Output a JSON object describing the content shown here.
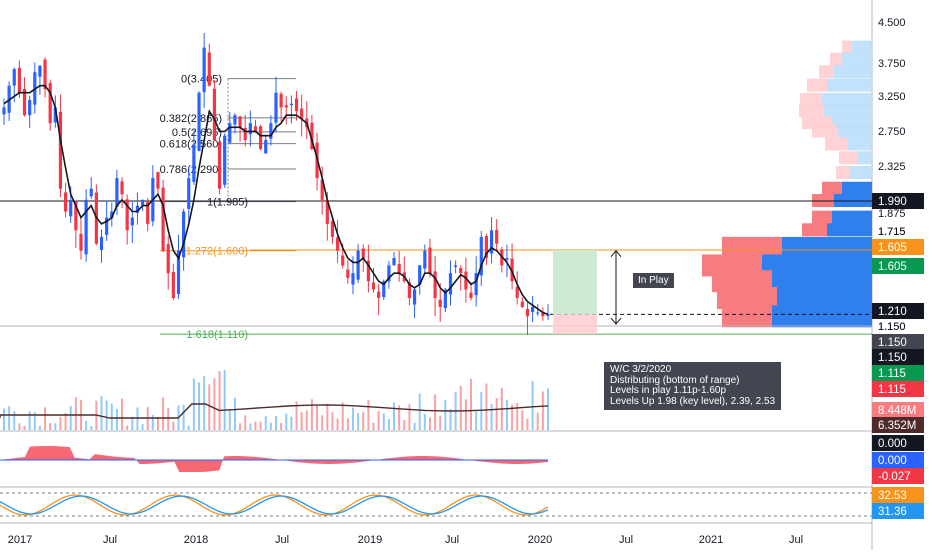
{
  "chart_data": [
    {
      "type": "candlestick",
      "panel": "price",
      "x_ticks": [
        "2017",
        "Jul",
        "2018",
        "Jul",
        "2019",
        "Jul",
        "2020",
        "Jul",
        "2021",
        "Jul"
      ],
      "y_ticks": [
        "4.500",
        "3.750",
        "3.250",
        "2.750",
        "2.325",
        "1.990",
        "1.875",
        "1.715",
        "1.605",
        "1.210",
        "1.150"
      ],
      "y_scale": "log",
      "ylim": [
        1.02,
        4.7
      ],
      "weekly_close": [
        3.0,
        3.3,
        3.55,
        3.2,
        2.9,
        3.1,
        3.5,
        3.6,
        3.25,
        2.8,
        3.0,
        2.1,
        1.9,
        2.0,
        1.75,
        1.6,
        2.0,
        2.1,
        1.65,
        1.7,
        1.85,
        1.9,
        2.2,
        2.05,
        1.75,
        1.85,
        1.95,
        2.0,
        1.8,
        2.2,
        2.1,
        1.6,
        1.45,
        1.3,
        1.6,
        1.9,
        2.2,
        2.55,
        3.2,
        3.9,
        3.3,
        2.6,
        2.1,
        2.65,
        2.8,
        2.9,
        2.75,
        2.6,
        2.8,
        2.7,
        2.5,
        2.6,
        2.8,
        3.2,
        3.0,
        3.0,
        3.05,
        2.95,
        2.85,
        2.75,
        2.5,
        2.2,
        2.0,
        1.8,
        1.7,
        1.6,
        1.5,
        1.42,
        1.45,
        1.6,
        1.55,
        1.4,
        1.35,
        1.3,
        1.4,
        1.5,
        1.55,
        1.45,
        1.4,
        1.3,
        1.35,
        1.5,
        1.6,
        1.45,
        1.3,
        1.25,
        1.35,
        1.45,
        1.5,
        1.45,
        1.35,
        1.3,
        1.45,
        1.7,
        1.55,
        1.75,
        1.65,
        1.5,
        1.55,
        1.4,
        1.3,
        1.25,
        1.2,
        1.25,
        1.22,
        1.2,
        1.21
      ],
      "moving_average": [
        3.05,
        3.1,
        3.15,
        3.2,
        3.2,
        3.2,
        3.25,
        3.3,
        3.3,
        3.2,
        3.0,
        2.6,
        2.3,
        2.05,
        1.95,
        1.85,
        1.9,
        1.95,
        1.85,
        1.8,
        1.82,
        1.85,
        1.95,
        2.0,
        1.95,
        1.9,
        1.9,
        1.95,
        1.95,
        2.0,
        2.05,
        1.95,
        1.75,
        1.6,
        1.55,
        1.65,
        1.8,
        2.0,
        2.3,
        2.6,
        2.95,
        2.85,
        2.7,
        2.7,
        2.75,
        2.75,
        2.75,
        2.7,
        2.7,
        2.7,
        2.65,
        2.65,
        2.65,
        2.75,
        2.8,
        2.9,
        2.9,
        2.9,
        2.85,
        2.8,
        2.6,
        2.4,
        2.2,
        2.0,
        1.85,
        1.72,
        1.62,
        1.55,
        1.52,
        1.52,
        1.55,
        1.5,
        1.45,
        1.4,
        1.38,
        1.42,
        1.45,
        1.45,
        1.43,
        1.38,
        1.36,
        1.38,
        1.45,
        1.45,
        1.42,
        1.36,
        1.33,
        1.36,
        1.4,
        1.44,
        1.42,
        1.38,
        1.4,
        1.5,
        1.58,
        1.62,
        1.6,
        1.56,
        1.52,
        1.46,
        1.38,
        1.32,
        1.28,
        1.26,
        1.24,
        1.22,
        1.21
      ],
      "annotations": [
        "0(3.405)",
        "0.382(2.865)",
        "0.5(2.695)",
        "0.618(2.560)",
        "0.786(2.290)",
        "1(1.985)",
        "1.272(1.600)",
        "1.618(1.110)"
      ],
      "fib_levels": [
        3.405,
        2.865,
        2.695,
        2.56,
        2.29,
        1.985,
        1.6,
        1.11
      ],
      "horizontal_lines": [
        1.99,
        1.605,
        1.15
      ],
      "price_labels": [
        {
          "text": "1.990",
          "color": "#131722"
        },
        {
          "text": "1.715",
          "color": ""
        },
        {
          "text": "1.605",
          "color": "#f7931a"
        },
        {
          "text": "1.605",
          "color": "#089950"
        },
        {
          "text": "1.210",
          "color": "#131722"
        },
        {
          "text": "1.150",
          "color": ""
        },
        {
          "text": "1.150",
          "color": "#434651"
        },
        {
          "text": "1.150",
          "color": "#131722"
        }
      ],
      "measure_label": "In Play",
      "note_lines": [
        "W/C 3/2/2020",
        "Distributing (bottom of range)",
        "Levels in play 1.11p-1.60p",
        "Levels Up 1.98 (key level), 2.39, 2.53"
      ]
    },
    {
      "type": "bar",
      "panel": "volume",
      "labels": [
        {
          "text": "1.115",
          "color": "#089950"
        },
        {
          "text": "1.115",
          "color": "#f23645"
        },
        {
          "text": "8.448M",
          "color": "#f77c80"
        },
        {
          "text": "6.352M",
          "color": "#4e2a2a"
        }
      ]
    },
    {
      "type": "area",
      "panel": "oscillator",
      "labels": [
        {
          "text": "0.000",
          "color": "#131722"
        },
        {
          "text": "0.000",
          "color": "#2962ff"
        },
        {
          "text": "-0.027",
          "color": "#f23645"
        }
      ]
    },
    {
      "type": "line",
      "panel": "stochastic",
      "labels": [
        {
          "text": "32.53",
          "color": "#f7931a"
        },
        {
          "text": "31.36",
          "color": "#2196f3"
        }
      ]
    }
  ]
}
